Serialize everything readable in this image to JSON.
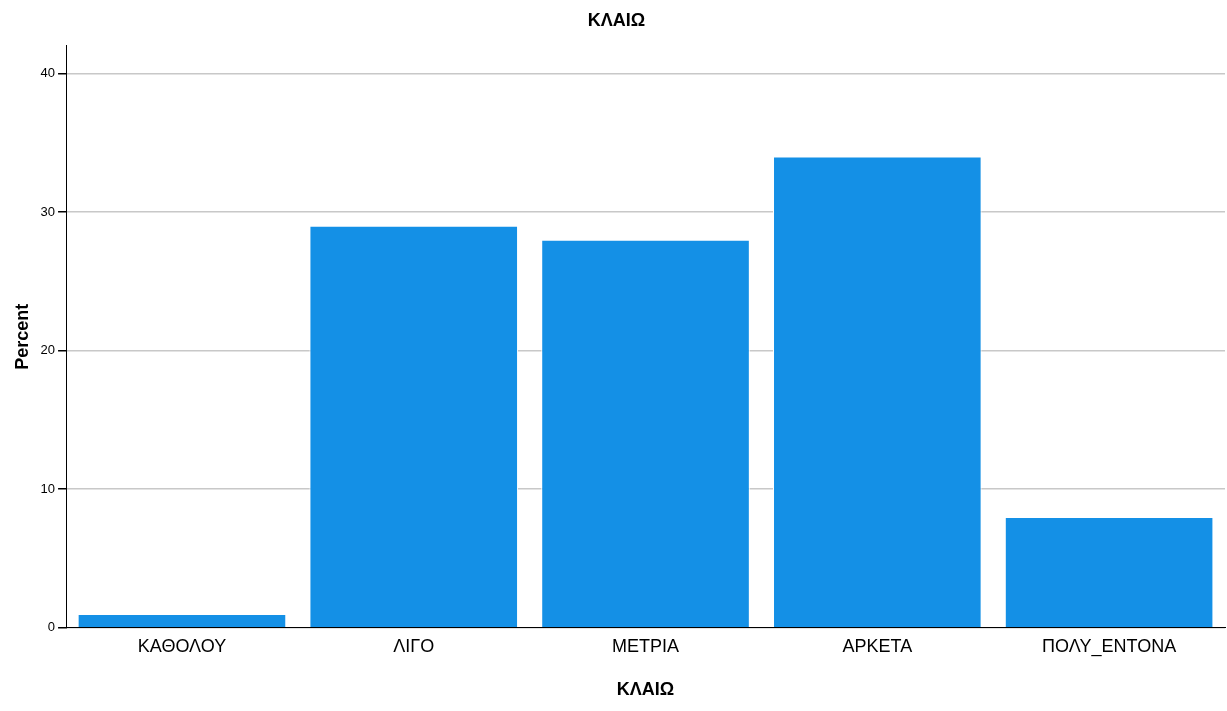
{
  "chart_data": {
    "type": "bar",
    "title": "ΚΛΑΙΩ",
    "xlabel": "ΚΛΑΙΩ",
    "ylabel": "Percent",
    "categories": [
      "ΚΑΘΟΛΟΥ",
      "ΛΙΓΟ",
      "ΜΕΤΡΙΑ",
      "ΑΡΚΕΤΑ",
      "ΠΟΛΥ_ΕΝΤΟΝΑ"
    ],
    "values": [
      1,
      29,
      28,
      34,
      8
    ],
    "color": "#1490e6",
    "ylim": [
      0,
      42
    ],
    "yticks": [
      0,
      10,
      20,
      30,
      40
    ],
    "grid": "y",
    "legend": false
  }
}
